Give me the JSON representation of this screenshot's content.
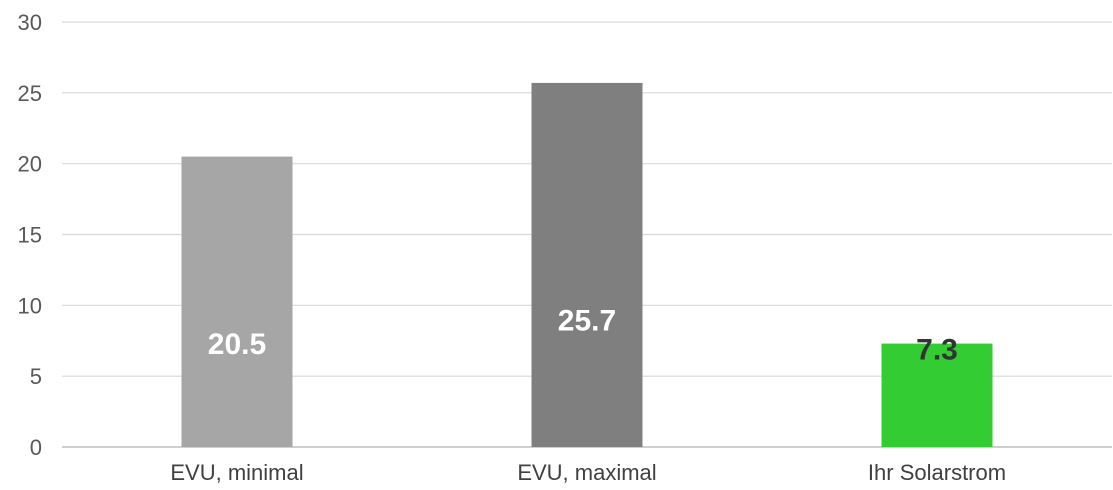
{
  "chart_data": {
    "type": "bar",
    "categories": [
      "EVU, minimal",
      "EVU, maximal",
      "Ihr Solarstrom"
    ],
    "values": [
      20.5,
      25.7,
      7.3
    ],
    "data_labels": [
      "20.5",
      "25.7",
      "7.3"
    ],
    "title": "",
    "xlabel": "",
    "ylabel": "",
    "ylim": [
      0,
      30
    ],
    "yticks": [
      0,
      5,
      10,
      15,
      20,
      25,
      30
    ],
    "grid": true,
    "legend": "none",
    "bar_colors": [
      "#a6a6a6",
      "#7f7f7f",
      "#33cc33"
    ],
    "label_colors": [
      "#ffffff",
      "#ffffff",
      "#333333"
    ],
    "label_placement": [
      "inside",
      "inside",
      "inside-top"
    ]
  }
}
